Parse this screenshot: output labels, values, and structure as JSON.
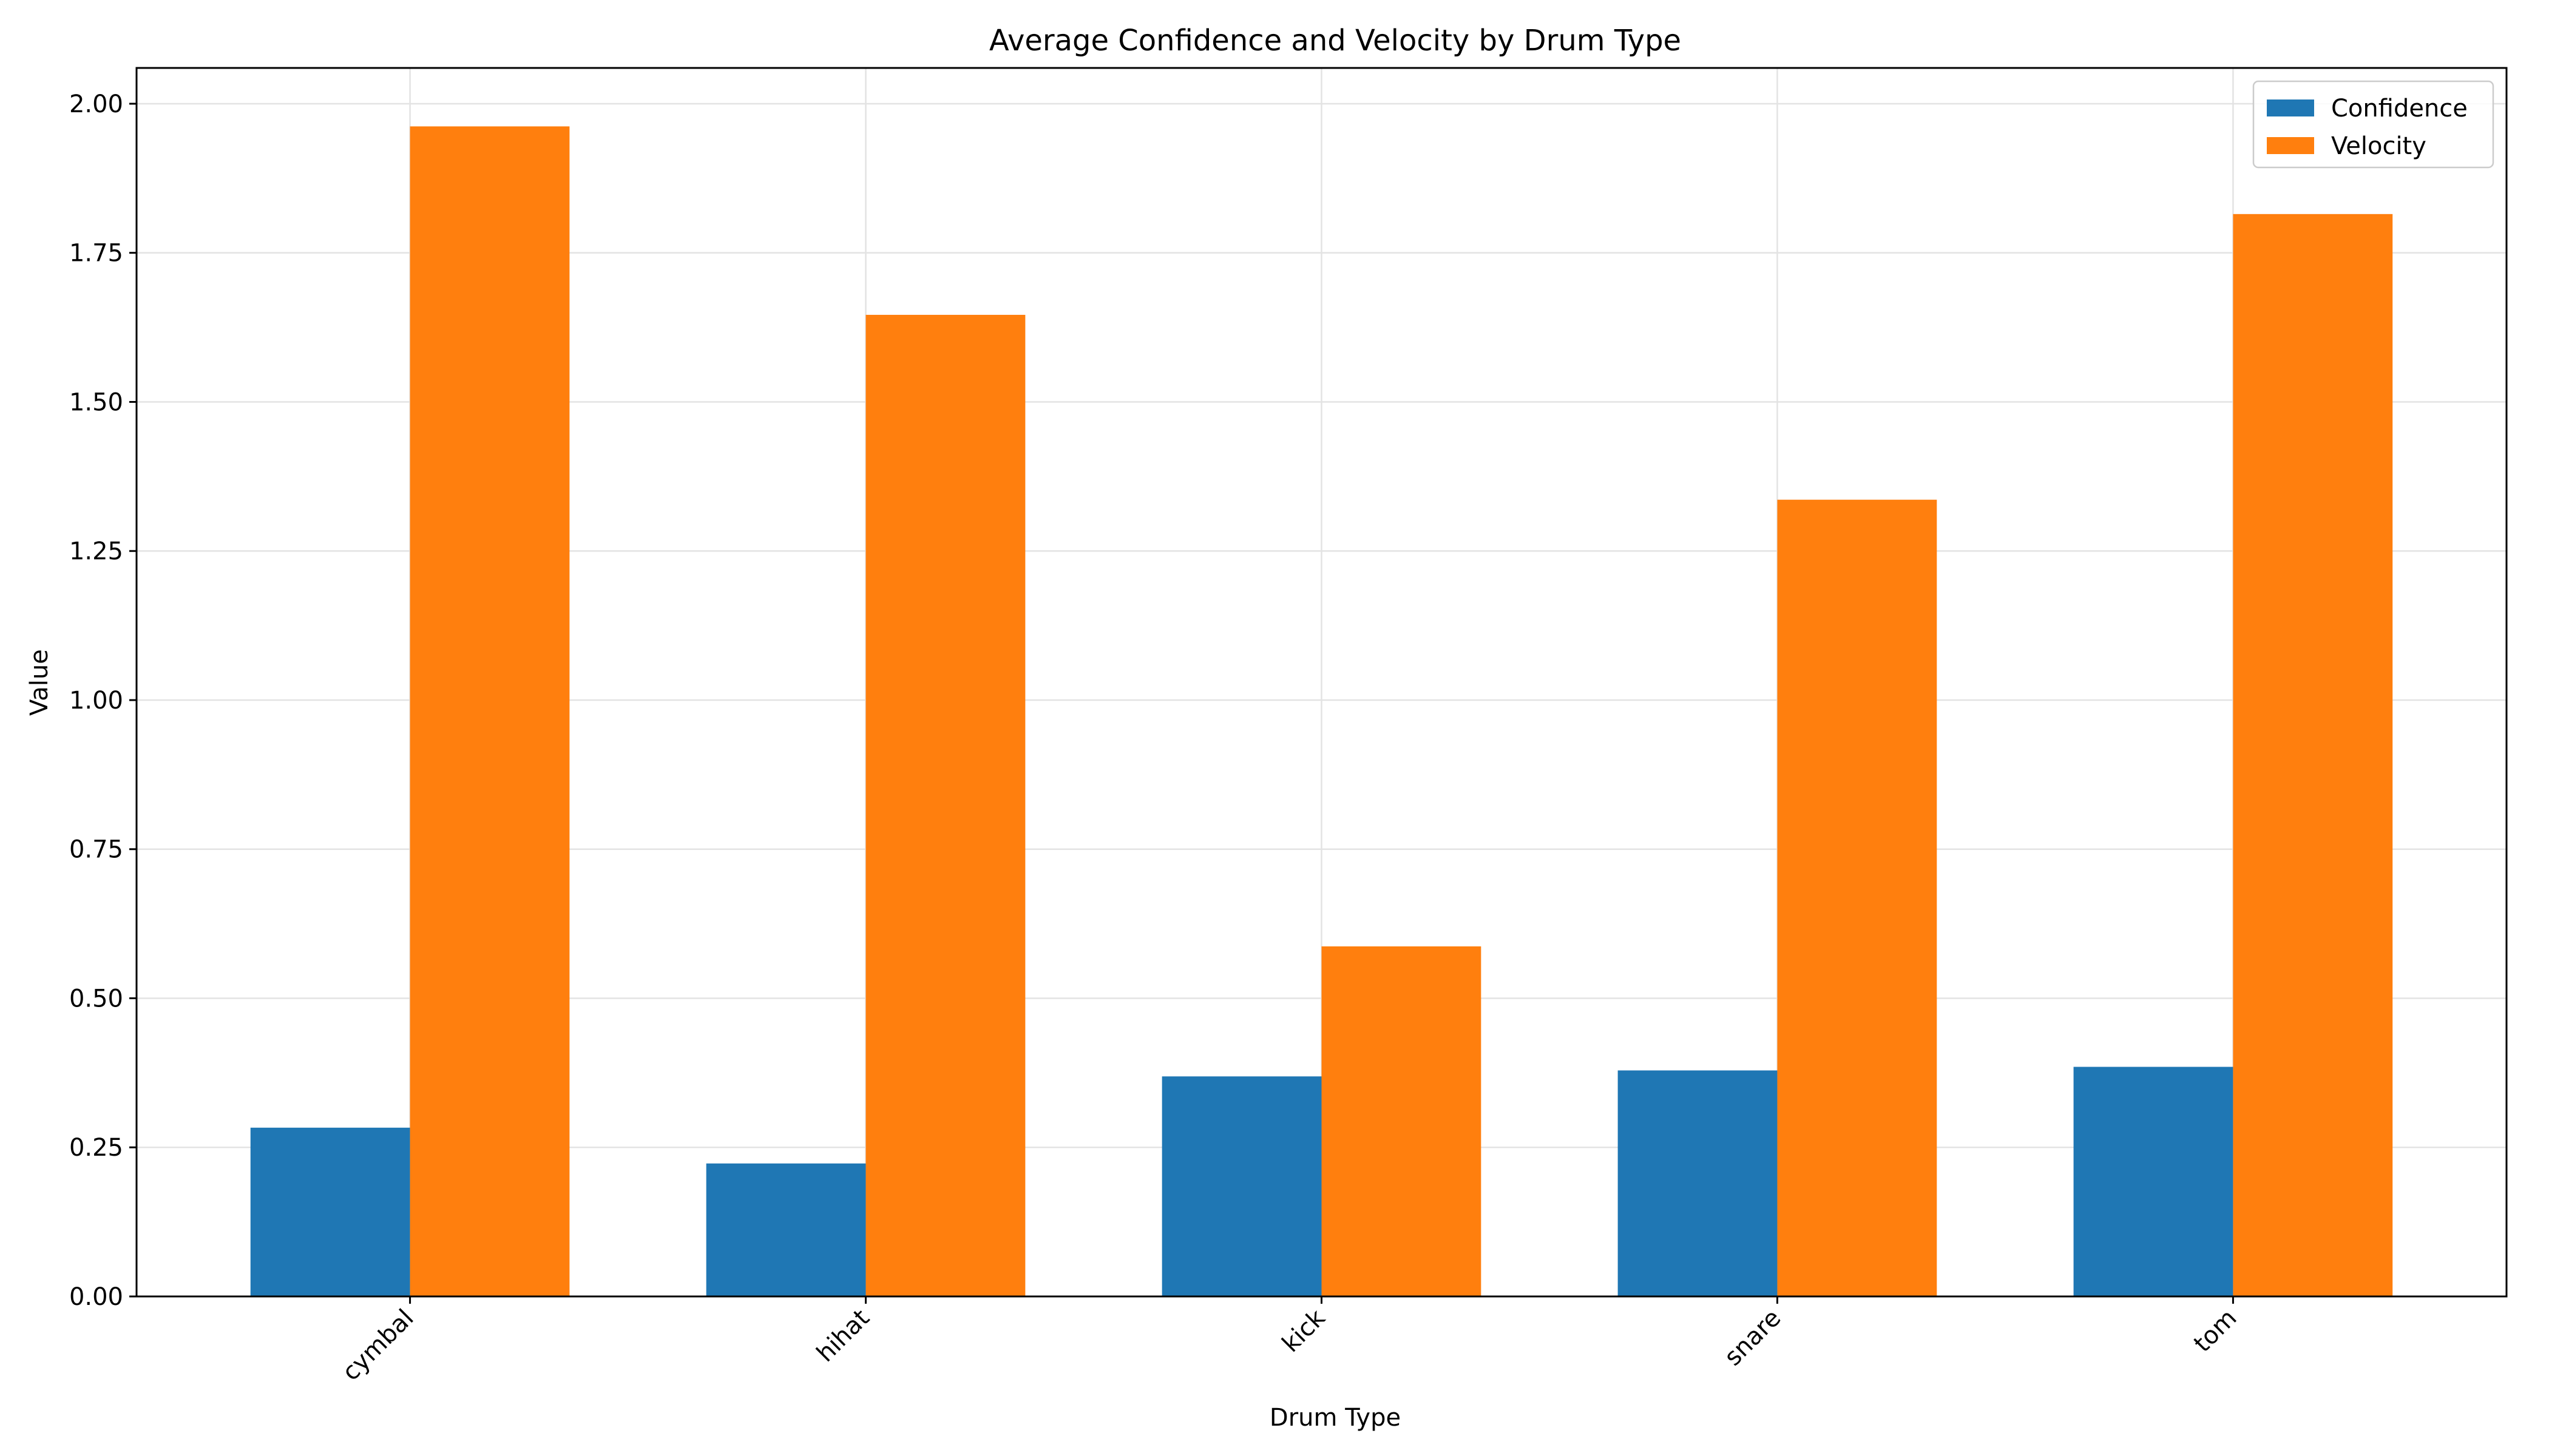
{
  "chart_data": {
    "type": "bar",
    "title": "Average Confidence and Velocity by Drum Type",
    "xlabel": "Drum Type",
    "ylabel": "Value",
    "categories": [
      "cymbal",
      "hihat",
      "kick",
      "snare",
      "tom"
    ],
    "series": [
      {
        "name": "Confidence",
        "color": "#1f77b4",
        "values": [
          0.283,
          0.223,
          0.369,
          0.379,
          0.385
        ]
      },
      {
        "name": "Velocity",
        "color": "#ff7f0e",
        "values": [
          1.962,
          1.646,
          0.587,
          1.336,
          1.815
        ]
      }
    ],
    "ylim": [
      0,
      2.06
    ],
    "yticks": [
      0.0,
      0.25,
      0.5,
      0.75,
      1.0,
      1.25,
      1.5,
      1.75,
      2.0
    ],
    "ytick_labels": [
      "0.00",
      "0.25",
      "0.50",
      "0.75",
      "1.00",
      "1.25",
      "1.50",
      "1.75",
      "2.00"
    ],
    "grid": true,
    "legend_position": "top-right"
  }
}
